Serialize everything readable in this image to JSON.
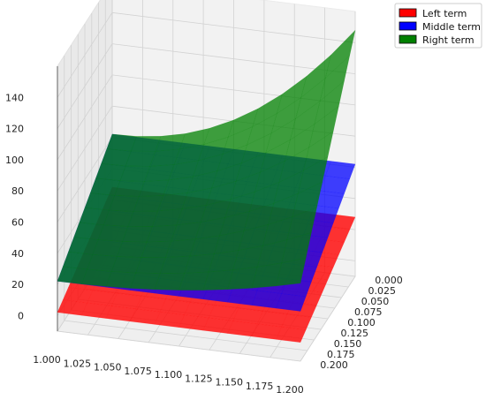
{
  "chart_data": {
    "type": "surface3d",
    "title": "",
    "x": {
      "label": "",
      "range": [
        1.0,
        1.2
      ],
      "ticks": [
        "1.000",
        "1.025",
        "1.050",
        "1.075",
        "1.100",
        "1.125",
        "1.150",
        "1.175",
        "1.200"
      ]
    },
    "y": {
      "label": "",
      "range": [
        0.0,
        0.2
      ],
      "ticks": [
        "0.000",
        "0.025",
        "0.050",
        "0.075",
        "0.100",
        "0.125",
        "0.150",
        "0.175",
        "0.200"
      ]
    },
    "z": {
      "label": "",
      "range": [
        -10,
        160
      ],
      "ticks": [
        "0",
        "20",
        "40",
        "60",
        "80",
        "100",
        "120",
        "140"
      ]
    },
    "grid": true,
    "legend_position": "top-right",
    "series": [
      {
        "name": "Left term",
        "color": "#ff0000",
        "corner_values": {
          "x1.0_y0.0": 28,
          "x1.2_y0.0": 28,
          "x1.0_y0.2": 2,
          "x1.2_y0.2": 2
        }
      },
      {
        "name": "Middle term",
        "color": "#0000ff",
        "corner_values": {
          "x1.0_y0.0": 62,
          "x1.2_y0.0": 62,
          "x1.0_y0.2": 22,
          "x1.2_y0.2": 22
        }
      },
      {
        "name": "Right term",
        "color": "#008000",
        "corner_values": {
          "x1.0_y0.0": 62,
          "x1.2_y0.0": 148,
          "x1.0_y0.2": 22,
          "x1.2_y0.2": 40
        }
      }
    ]
  }
}
